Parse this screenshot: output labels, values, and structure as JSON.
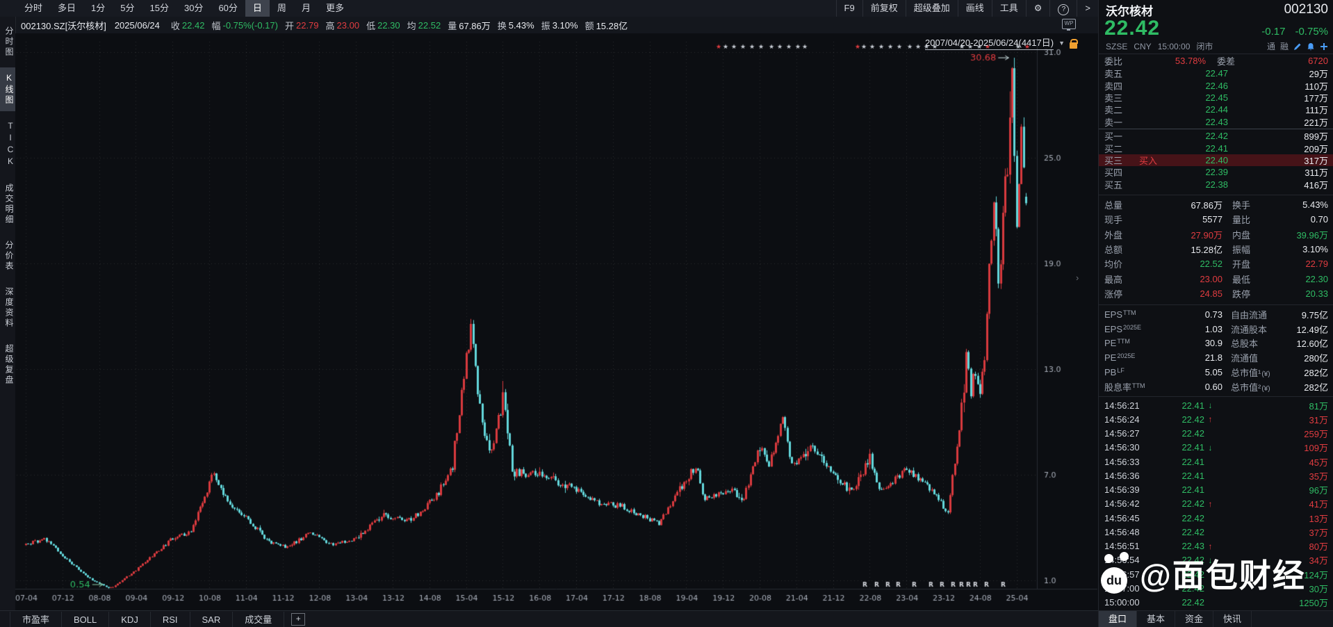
{
  "period_toolbar": {
    "items": [
      "分时",
      "多日",
      "1分",
      "5分",
      "15分",
      "30分",
      "60分",
      "日",
      "周",
      "月",
      "更多"
    ],
    "active_index": 7,
    "right_items": [
      "F9",
      "前复权",
      "超级叠加",
      "画线",
      "工具"
    ],
    "icons": {
      "gear": "⚙",
      "help": "?",
      "chevron": ">"
    }
  },
  "info_bar": {
    "code": "002130.SZ[沃尔核材]",
    "date": "2025/06/24",
    "fields": [
      {
        "label": "收",
        "value": "22.42",
        "color": "green"
      },
      {
        "label": "幅",
        "value": "-0.75%(-0.17)",
        "color": "green"
      },
      {
        "label": "开",
        "value": "22.79",
        "color": "red"
      },
      {
        "label": "高",
        "value": "23.00",
        "color": "red"
      },
      {
        "label": "低",
        "value": "22.30",
        "color": "green"
      },
      {
        "label": "均",
        "value": "22.52",
        "color": "green"
      },
      {
        "label": "量",
        "value": "67.86万",
        "color": "white"
      },
      {
        "label": "换",
        "value": "5.43%",
        "color": "white"
      },
      {
        "label": "振",
        "value": "3.10%",
        "color": "white"
      },
      {
        "label": "额",
        "value": "15.28亿",
        "color": "white"
      }
    ],
    "wp_icon": "WP"
  },
  "sidebar": {
    "items": [
      "分时图",
      "K线图",
      "TICK",
      "成交明细",
      "分价表",
      "深度资料",
      "超级复盘"
    ],
    "active_index": 1
  },
  "chart_header": {
    "range_label": "2007/04/20-2025/06/24(4417日)",
    "caret": "▼",
    "collapse_handle": "›"
  },
  "chart_data": {
    "type": "candlestick",
    "title": "沃尔核材 002130.SZ 日K线 前复权",
    "x_labels": [
      "07-04",
      "07-12",
      "08-08",
      "09-04",
      "09-12",
      "10-08",
      "11-04",
      "11-12",
      "12-08",
      "13-04",
      "13-12",
      "14-08",
      "15-04",
      "15-12",
      "16-08",
      "17-04",
      "17-12",
      "18-08",
      "19-04",
      "19-12",
      "20-08",
      "21-04",
      "21-12",
      "22-08",
      "23-04",
      "23-12",
      "24-08",
      "25-04"
    ],
    "y_ticks": [
      31.0,
      25.0,
      19.0,
      13.0,
      7.0,
      1.0
    ],
    "ylim": [
      1,
      31
    ],
    "grid": "dotted",
    "legend_position": "none",
    "n_candles": 437,
    "month_span": 218,
    "keyframes": {
      "month_offsets": [
        0,
        4,
        9,
        14,
        18,
        19,
        24,
        32,
        36,
        41,
        43,
        47,
        53,
        57,
        62,
        67,
        72,
        78,
        84,
        90,
        93,
        97,
        98,
        101,
        104,
        106,
        112,
        120,
        124,
        130,
        138,
        144,
        146,
        148,
        154,
        156,
        160,
        162,
        165,
        167,
        172,
        176,
        180,
        184,
        186,
        192,
        196,
        200,
        201,
        203,
        204,
        205,
        206,
        207,
        208,
        209,
        210,
        211,
        212,
        213,
        214,
        215,
        215.5,
        216,
        217,
        217.5,
        218
      ],
      "prices": [
        3.0,
        3.4,
        2.2,
        1.1,
        0.58,
        0.62,
        1.6,
        3.4,
        3.8,
        7.2,
        5.8,
        4.8,
        3.2,
        2.9,
        3.7,
        3.0,
        3.4,
        4.7,
        4.4,
        6.0,
        7.5,
        15.6,
        13.0,
        8.0,
        11.5,
        7.2,
        7.0,
        6.2,
        5.4,
        5.2,
        4.2,
        6.8,
        7.5,
        5.6,
        6.2,
        5.4,
        8.6,
        7.6,
        10.2,
        7.6,
        8.6,
        7.0,
        6.0,
        8.0,
        6.0,
        7.4,
        6.6,
        5.2,
        5.0,
        8.5,
        11.0,
        13.5,
        11.5,
        12.8,
        11.8,
        13.0,
        18.5,
        22.0,
        18.5,
        21.0,
        24.5,
        30.68,
        25.0,
        21.8,
        26.5,
        24.0,
        22.42
      ]
    },
    "last_candle": {
      "open": 22.79,
      "high": 23.0,
      "low": 22.3,
      "close": 22.42
    },
    "last_close": 22.42,
    "annotations": [
      {
        "text": "30.68",
        "value": 30.68,
        "type": "peak",
        "color": "#e13c40"
      },
      {
        "text": "0.54",
        "value": 0.54,
        "type": "low",
        "color": "#2fbc64"
      }
    ],
    "colors": {
      "up": "#d93a3e",
      "down": "#63d8dc"
    },
    "event_markers": {
      "white_x": [
        1022,
        1034,
        1047,
        1060,
        1073,
        1088,
        1100,
        1113,
        1126,
        1136,
        1221,
        1233,
        1246,
        1259,
        1272,
        1287,
        1299,
        1311,
        1323,
        1362,
        1374,
        1387,
        1443
      ],
      "red_x": [
        1012,
        1212,
        1399,
        1456
      ]
    },
    "r_marker_x": [
      1222,
      1239,
      1255,
      1270,
      1293,
      1317,
      1333,
      1349,
      1361,
      1371,
      1381,
      1397,
      1421
    ]
  },
  "quote_panel": {
    "name": "沃尔核材",
    "code": "002130",
    "price": "22.42",
    "change": "-0.17",
    "change_pct": "-0.75%",
    "exchange_line": {
      "exchange": "SZSE",
      "currency": "CNY",
      "time": "15:00:00",
      "status": "闭市",
      "badges": [
        "通",
        "融"
      ]
    },
    "weibi": {
      "label": "委比",
      "value": "53.78%",
      "diff_label": "委差",
      "diff_value": "6720"
    },
    "order_book": {
      "sells": [
        {
          "label": "卖五",
          "price": "22.47",
          "vol": "29万"
        },
        {
          "label": "卖四",
          "price": "22.46",
          "vol": "110万"
        },
        {
          "label": "卖三",
          "price": "22.45",
          "vol": "177万"
        },
        {
          "label": "卖二",
          "price": "22.44",
          "vol": "111万"
        },
        {
          "label": "卖一",
          "price": "22.43",
          "vol": "221万"
        }
      ],
      "buys": [
        {
          "label": "买一",
          "price": "22.42",
          "vol": "899万"
        },
        {
          "label": "买二",
          "price": "22.41",
          "vol": "209万"
        },
        {
          "label": "买三",
          "price": "22.40",
          "vol": "317万",
          "tag": "买入",
          "highlight": true
        },
        {
          "label": "买四",
          "price": "22.39",
          "vol": "311万"
        },
        {
          "label": "买五",
          "price": "22.38",
          "vol": "416万"
        }
      ]
    },
    "stats_rows": [
      {
        "l1": "总量",
        "v1": "67.86万",
        "c1": "white",
        "l2": "换手",
        "v2": "5.43%",
        "c2": "white"
      },
      {
        "l1": "现手",
        "v1": "5577",
        "c1": "white",
        "l2": "量比",
        "v2": "0.70",
        "c2": "white"
      },
      {
        "l1": "外盘",
        "v1": "27.90万",
        "c1": "red",
        "l2": "内盘",
        "v2": "39.96万",
        "c2": "green"
      },
      {
        "l1": "总额",
        "v1": "15.28亿",
        "c1": "white",
        "l2": "振幅",
        "v2": "3.10%",
        "c2": "white"
      },
      {
        "l1": "均价",
        "v1": "22.52",
        "c1": "green",
        "l2": "开盘",
        "v2": "22.79",
        "c2": "red"
      },
      {
        "l1": "最高",
        "v1": "23.00",
        "c1": "red",
        "l2": "最低",
        "v2": "22.30",
        "c2": "green"
      },
      {
        "l1": "涨停",
        "v1": "24.85",
        "c1": "red",
        "l2": "跌停",
        "v2": "20.33",
        "c2": "green"
      }
    ],
    "fin_rows": [
      {
        "l1": "EPS",
        "sup1": "TTM",
        "v1": "0.73",
        "l2": "自由流通",
        "v2": "9.75亿"
      },
      {
        "l1": "EPS",
        "sup1": "2025E",
        "v1": "1.03",
        "l2": "流通股本",
        "v2": "12.49亿"
      },
      {
        "l1": "PE",
        "sup1": "TTM",
        "v1": "30.9",
        "l2": "总股本",
        "v2": "12.60亿"
      },
      {
        "l1": "PE",
        "sup1": "2025E",
        "v1": "21.8",
        "l2": "流通值",
        "v2": "280亿"
      },
      {
        "l1": "PB",
        "sup1": "LF",
        "v1": "5.05",
        "l2": "总市值¹",
        "l2_suffix": "(¥)",
        "v2": "282亿"
      },
      {
        "l1": "股息率",
        "sup1": "TTM",
        "v1": "0.60",
        "l2": "总市值²",
        "l2_suffix": "(¥)",
        "v2": "282亿"
      }
    ],
    "ticks": [
      {
        "time": "14:56:21",
        "price": "22.41",
        "arrow": "down",
        "vol": "81万",
        "vol_color": "green"
      },
      {
        "time": "14:56:24",
        "price": "22.42",
        "arrow": "up",
        "vol": "31万",
        "vol_color": "red"
      },
      {
        "time": "14:56:27",
        "price": "22.42",
        "arrow": "",
        "vol": "259万",
        "vol_color": "red"
      },
      {
        "time": "14:56:30",
        "price": "22.41",
        "arrow": "down",
        "vol": "109万",
        "vol_color": "red"
      },
      {
        "time": "14:56:33",
        "price": "22.41",
        "arrow": "",
        "vol": "45万",
        "vol_color": "red"
      },
      {
        "time": "14:56:36",
        "price": "22.41",
        "arrow": "",
        "vol": "35万",
        "vol_color": "red"
      },
      {
        "time": "14:56:39",
        "price": "22.41",
        "arrow": "",
        "vol": "96万",
        "vol_color": "green"
      },
      {
        "time": "14:56:42",
        "price": "22.42",
        "arrow": "up",
        "vol": "41万",
        "vol_color": "red"
      },
      {
        "time": "14:56:45",
        "price": "22.42",
        "arrow": "",
        "vol": "13万",
        "vol_color": "red"
      },
      {
        "time": "14:56:48",
        "price": "22.42",
        "arrow": "",
        "vol": "37万",
        "vol_color": "red"
      },
      {
        "time": "14:56:51",
        "price": "22.43",
        "arrow": "up",
        "vol": "80万",
        "vol_color": "red"
      },
      {
        "time": "14:56:54",
        "price": "22.42",
        "arrow": "down",
        "vol": "34万",
        "vol_color": "red"
      },
      {
        "time": "14:56:57",
        "price": "22.42",
        "arrow": "",
        "vol": "124万",
        "vol_color": "green"
      },
      {
        "time": "14:57:00",
        "price": "22.42",
        "arrow": "",
        "vol": "30万",
        "vol_color": "green"
      },
      {
        "time": "15:00:00",
        "price": "22.42",
        "arrow": "",
        "vol": "1250万",
        "vol_color": "green"
      }
    ],
    "tabs": [
      "盘口",
      "基本",
      "资金",
      "快讯"
    ],
    "active_tab_index": 0
  },
  "bottom_toolbar": {
    "tabs": [
      "市盈率",
      "BOLL",
      "KDJ",
      "RSI",
      "SAR",
      "成交量"
    ],
    "add_button": "+"
  },
  "watermark": {
    "logo_text": "du",
    "handle": "@面包财经"
  },
  "colors": {
    "background": "#0a0c10",
    "green": "#2fbc64",
    "red": "#e13c40",
    "candle_up": "#d93a3e",
    "candle_down": "#63d8dc",
    "blue_icon": "#4a9df8",
    "lock_orange": "#f0a030"
  }
}
